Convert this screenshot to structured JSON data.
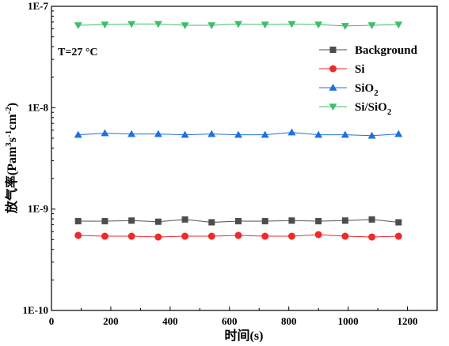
{
  "chart_data": {
    "type": "line",
    "title": "",
    "xlabel": "时间(s)",
    "ylabel": "放气率(Pam³s⁻¹cm⁻²)",
    "ylabel_parts": {
      "main": "放气率(Pam",
      "sup1": "3",
      "mid1": "s",
      "sup2": "-1",
      "mid2": "cm",
      "sup3": "-2",
      "end": ")"
    },
    "xlim": [
      0,
      1300
    ],
    "ylim": [
      1e-10,
      1e-07
    ],
    "yscale": "log",
    "x_ticks": [
      0,
      200,
      400,
      600,
      800,
      1000,
      1200
    ],
    "x_tick_labels": [
      "0",
      "200",
      "400",
      "600",
      "800",
      "1000",
      "1200"
    ],
    "y_ticks": [
      1e-10,
      1e-09,
      1e-08,
      1e-07
    ],
    "y_tick_labels": [
      "1E-10",
      "1E-9",
      "1E-8",
      "1E-7"
    ],
    "grid": false,
    "legend_position": "top-right",
    "annotation": "T=27 °C",
    "x": [
      90,
      180,
      270,
      360,
      450,
      540,
      630,
      720,
      810,
      900,
      990,
      1080,
      1170
    ],
    "series": [
      {
        "name": "Background",
        "label_main": "Background",
        "label_sub": "",
        "label_tail": "",
        "color": "#4d4d4d",
        "marker": "square",
        "values": [
          7.6e-10,
          7.6e-10,
          7.7e-10,
          7.5e-10,
          7.9e-10,
          7.4e-10,
          7.6e-10,
          7.6e-10,
          7.7e-10,
          7.6e-10,
          7.7e-10,
          7.9e-10,
          7.4e-10
        ]
      },
      {
        "name": "Si",
        "label_main": "Si",
        "label_sub": "",
        "label_tail": "",
        "color": "#ee2a2a",
        "marker": "circle",
        "values": [
          5.5e-10,
          5.4e-10,
          5.4e-10,
          5.3e-10,
          5.4e-10,
          5.4e-10,
          5.5e-10,
          5.4e-10,
          5.4e-10,
          5.6e-10,
          5.4e-10,
          5.3e-10,
          5.4e-10
        ]
      },
      {
        "name": "SiO2",
        "label_main": "SiO",
        "label_sub": "2",
        "label_tail": "",
        "color": "#1f6fe0",
        "marker": "triangle-up",
        "values": [
          5.4e-09,
          5.6e-09,
          5.5e-09,
          5.5e-09,
          5.4e-09,
          5.5e-09,
          5.4e-09,
          5.4e-09,
          5.7e-09,
          5.4e-09,
          5.4e-09,
          5.3e-09,
          5.5e-09
        ]
      },
      {
        "name": "Si/SiO2",
        "label_main": "Si/SiO",
        "label_sub": "2",
        "label_tail": "",
        "color": "#3dbf6a",
        "marker": "triangle-down",
        "values": [
          6.5e-08,
          6.6e-08,
          6.7e-08,
          6.7e-08,
          6.5e-08,
          6.5e-08,
          6.7e-08,
          6.6e-08,
          6.7e-08,
          6.6e-08,
          6.4e-08,
          6.5e-08,
          6.6e-08
        ]
      }
    ]
  }
}
